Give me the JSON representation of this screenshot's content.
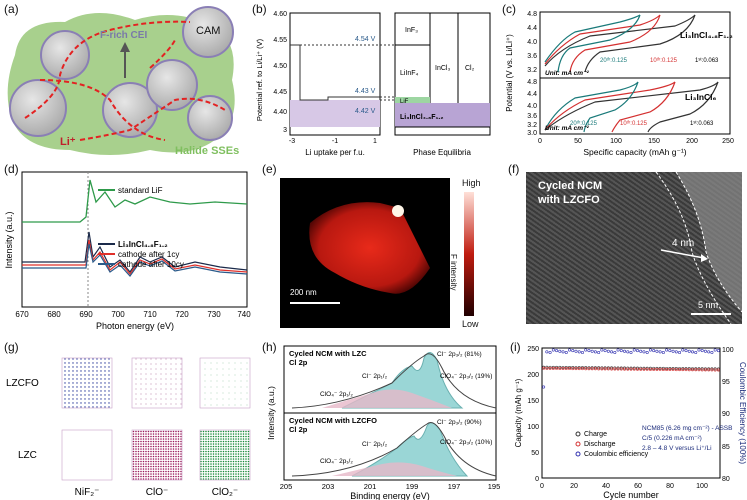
{
  "labels": {
    "a": "(a)",
    "b": "(b)",
    "c": "(c)",
    "d": "(d)",
    "e": "(e)",
    "f": "(f)",
    "g": "(g)",
    "h": "(h)",
    "i": "(i)"
  },
  "panel_a": {
    "cei": "F-rich CEI",
    "cam": "CAM",
    "li": "Li⁺",
    "sse": "Halide SSEs"
  },
  "panel_b": {
    "ylabel": "Potential ref. to Li/Li⁺ (V)",
    "xlabel_left": "Li uptake per f.u.",
    "xlabel_right": "Phase Equilibria",
    "yticks": [
      "4.60",
      "4.55",
      "4.50",
      "4.45",
      "4.40"
    ],
    "yticks_low": [
      "3"
    ],
    "xticks": [
      "-3",
      "-1",
      "1"
    ],
    "v1": "4.54 V",
    "v2": "4.43 V",
    "v3": "4.42 V",
    "ph_inf3": "InF₃",
    "ph_lilnf4": "LiInF₄",
    "ph_incl3": "InCl₃",
    "ph_cl2": "Cl₂",
    "ph_lif": "LiF",
    "ph_base": "Li₃InCl₄.₈F₁.₂"
  },
  "panel_c": {
    "ylabel": "Potential (V vs. Li/Li⁺)",
    "xlabel": "Specific capacity (mAh g⁻¹)",
    "xticks": [
      "0",
      "50",
      "100",
      "150",
      "200",
      "250"
    ],
    "yticks_top": [
      "4.8",
      "4.4",
      "4.0",
      "3.6",
      "3.2"
    ],
    "yticks_bot": [
      "4.8",
      "4.4",
      "4.0",
      "3.6",
      "3.2",
      "3.0"
    ],
    "top_label": "Li₃InCl₄.₈F₁.₂",
    "bot_label": "Li₃InCl₆",
    "unit": "Unit: mA cm⁻²",
    "c20": "20ᵗʰ:0.125",
    "c10": "10ᵗʰ:0.125",
    "c1": "1ˢᵗ:0.063"
  },
  "panel_d": {
    "ylabel": "Intensity (a.u.)",
    "xlabel": "Photon energy (eV)",
    "xticks": [
      "670",
      "680",
      "690",
      "700",
      "710",
      "720",
      "730",
      "740"
    ],
    "legend": [
      "standard LiF",
      "Li₃InCl₄.₈F₁.₂",
      "cathode after 1cy",
      "cathode after 10cy"
    ],
    "colors": [
      "#2e9a4a",
      "#1b2a4a",
      "#e0302a",
      "#2a5a8a"
    ]
  },
  "panel_e": {
    "high": "High",
    "low": "Low",
    "cbar": "F intensity",
    "scale": "200 nm"
  },
  "panel_f": {
    "title1": "Cycled NCM",
    "title2": "with LZCFO",
    "thick": "4 nm",
    "scale": "5 nm"
  },
  "panel_g": {
    "row1": "LZCFO",
    "row2": "LZC",
    "col1": "NiF₂⁻",
    "col2": "ClO⁻",
    "col3": "ClO₂⁻"
  },
  "panel_h": {
    "ylabel": "Intensity (a.u.)",
    "xlabel": "Binding energy (eV)",
    "xticks": [
      "205",
      "203",
      "201",
      "199",
      "197",
      "195"
    ],
    "top_title1": "Cycled NCM with LZC",
    "top_title2": "Cl 2p",
    "bot_title1": "Cycled NCM with LZCFO",
    "bot_title2": "Cl 2p",
    "top_cl_minus_32": "Cl⁻ 2p₃/₂ (81%)",
    "top_clo4_32": "ClO₄⁻ 2p₃/₂ (19%)",
    "top_cl_minus_12": "Cl⁻ 2p₁/₂",
    "top_clo4_12": "ClO₄⁻ 2p₁/₂",
    "bot_cl_minus_32": "Cl⁻ 2p₃/₂ (90%)",
    "bot_clo4_32": "ClO₄⁻ 2p₃/₂ (10%)",
    "bot_cl_minus_12": "Cl⁻ 2p₁/₂",
    "bot_clo4_12": "ClO₄⁻ 2p₁/₂"
  },
  "panel_i": {
    "ylabel": "Capacity (mAh g⁻¹)",
    "y2label": "Coulombic Efficiency (100%)",
    "xlabel": "Cycle number",
    "yticks": [
      "0",
      "50",
      "100",
      "150",
      "200",
      "250"
    ],
    "y2ticks": [
      "80",
      "85",
      "90",
      "95",
      "100"
    ],
    "xticks": [
      "0",
      "20",
      "40",
      "60",
      "80",
      "100"
    ],
    "legend": [
      "Charge",
      "Discharge",
      "Coulombic efficiency"
    ],
    "info1": "NCM85 (6.26 mg cm⁻²) - ASSB",
    "info2": "C/5 (0.226 mA cm⁻²)",
    "info3": "2.8 – 4.8 V versus Li⁺/Li"
  },
  "chart_data": [
    {
      "type": "line",
      "panel": "d",
      "title": "",
      "xlabel": "Photon energy (eV)",
      "ylabel": "Intensity (a.u.)",
      "xlim": [
        670,
        740
      ],
      "series": [
        {
          "name": "standard LiF"
        },
        {
          "name": "Li3InCl4.8F1.2"
        },
        {
          "name": "cathode after 1cy"
        },
        {
          "name": "cathode after 10cy"
        }
      ]
    },
    {
      "type": "scatter",
      "panel": "i",
      "xlabel": "Cycle number",
      "ylabel": "Capacity (mAh g⁻¹)",
      "ylim": [
        0,
        250
      ],
      "xlim": [
        0,
        110
      ],
      "series": [
        {
          "name": "Charge",
          "approx": 210
        },
        {
          "name": "Discharge",
          "approx": 210
        },
        {
          "name": "Coulombic efficiency",
          "approx": 99.5
        }
      ]
    }
  ]
}
